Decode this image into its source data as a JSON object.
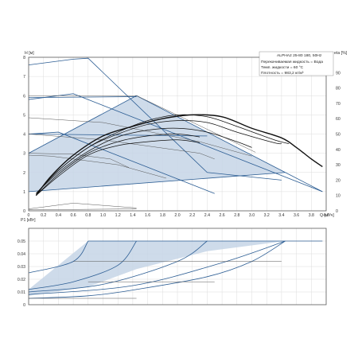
{
  "chart_data": [
    {
      "type": "line",
      "name": "head",
      "xlabel": "Q [м³/ч]",
      "ylabel": "H [м]",
      "y2label": "eta [%]",
      "xlim": [
        0,
        4.0
      ],
      "ylim": [
        0,
        8
      ],
      "y2lim": [
        0,
        100
      ],
      "x_ticks": [
        "0",
        "0.2",
        "0.4",
        "0.6",
        "0.8",
        "1.0",
        "1.2",
        "1.4",
        "1.6",
        "1.8",
        "2.0",
        "2.2",
        "2.4",
        "2.6",
        "2.8",
        "3.0",
        "3.2",
        "3.4",
        "3.6",
        "3.8",
        "4.0"
      ],
      "y_ticks": [
        "0",
        "1",
        "2",
        "3",
        "4",
        "5",
        "6",
        "7",
        "8"
      ],
      "y2_ticks": [
        "0",
        "10",
        "20",
        "30",
        "40",
        "50",
        "60",
        "70",
        "80",
        "90"
      ],
      "legend": [
        "ALPHA2 25-80 180, 50Hz",
        "Перекачиваемая жидкость = Вода",
        "Темп. жидкости = 60 °C",
        "Плотность = 983,2 кг/м³"
      ],
      "legend_placement": "top-right",
      "grid": true,
      "region": [
        [
          0,
          3.0
        ],
        [
          1.45,
          6.0
        ],
        [
          3.45,
          2.0
        ],
        [
          0,
          1.0
        ]
      ],
      "series": [
        {
          "style": "blue",
          "points": [
            [
              0,
              7.6
            ],
            [
              0.3,
              7.75
            ],
            [
              0.6,
              7.9
            ],
            [
              0.8,
              7.95
            ],
            [
              2.4,
              2.0
            ],
            [
              3.4,
              1.6
            ]
          ]
        },
        {
          "style": "blue",
          "points": [
            [
              0,
              5.8
            ],
            [
              0.6,
              6.1
            ],
            [
              3.95,
              1.0
            ]
          ]
        },
        {
          "style": "blue",
          "points": [
            [
              0,
              4.0
            ],
            [
              0.4,
              4.1
            ],
            [
              2.5,
              0.9
            ]
          ]
        },
        {
          "style": "blue",
          "points": [
            [
              0,
              3.0
            ],
            [
              1.45,
              6.0
            ],
            [
              3.45,
              2.0
            ],
            [
              3.95,
              1.0
            ]
          ]
        },
        {
          "style": "blue",
          "points": [
            [
              0,
              5.9
            ],
            [
              1.45,
              5.95
            ]
          ]
        },
        {
          "style": "blue",
          "points": [
            [
              0,
              4.0
            ],
            [
              2.4,
              3.9
            ]
          ]
        },
        {
          "style": "blue",
          "points": [
            [
              0,
              1.0
            ],
            [
              3.45,
              2.0
            ]
          ]
        },
        {
          "style": "grey",
          "points": [
            [
              0,
              6.0
            ],
            [
              1.45,
              6.0
            ],
            [
              3.05,
              3.05
            ]
          ]
        },
        {
          "style": "grey",
          "points": [
            [
              0,
              4.85
            ],
            [
              1.0,
              4.6
            ],
            [
              2.3,
              3.6
            ],
            [
              3.0,
              2.85
            ]
          ]
        },
        {
          "style": "grey",
          "points": [
            [
              0,
              4.0
            ],
            [
              1.0,
              3.7
            ],
            [
              2.3,
              3.0
            ],
            [
              2.5,
              2.7
            ]
          ]
        },
        {
          "style": "grey",
          "points": [
            [
              0,
              2.9
            ],
            [
              0.3,
              2.85
            ],
            [
              1.2,
              2.4
            ],
            [
              1.85,
              1.7
            ]
          ]
        },
        {
          "style": "grey",
          "points": [
            [
              0,
              3.0
            ],
            [
              0.6,
              2.95
            ],
            [
              1.1,
              2.7
            ],
            [
              1.35,
              2.25
            ]
          ]
        },
        {
          "style": "grey",
          "points": [
            [
              0,
              0.1
            ],
            [
              0.6,
              0.4
            ],
            [
              1.45,
              0.15
            ]
          ]
        },
        {
          "style": "grey",
          "points": [
            [
              0,
              0.05
            ],
            [
              1.45,
              0.1
            ]
          ]
        },
        {
          "style": "eff_main",
          "points": [
            [
              0.1,
              0.8
            ],
            [
              0.3,
              1.8
            ],
            [
              0.6,
              2.9
            ],
            [
              1.0,
              3.9
            ],
            [
              1.4,
              4.4
            ],
            [
              1.8,
              4.8
            ],
            [
              2.2,
              5.0
            ],
            [
              2.6,
              4.9
            ],
            [
              3.0,
              4.3
            ],
            [
              3.4,
              3.8
            ],
            [
              3.6,
              3.3
            ],
            [
              3.8,
              2.7
            ],
            [
              3.95,
              2.3
            ]
          ]
        },
        {
          "style": "eff",
          "points": [
            [
              0.1,
              0.9
            ],
            [
              0.4,
              2.1
            ],
            [
              0.8,
              3.3
            ],
            [
              1.2,
              4.1
            ],
            [
              1.6,
              4.7
            ],
            [
              2.0,
              5.0
            ],
            [
              2.4,
              4.9
            ],
            [
              2.8,
              4.4
            ],
            [
              3.3,
              3.7
            ],
            [
              3.5,
              3.5
            ]
          ]
        },
        {
          "style": "eff",
          "points": [
            [
              0.1,
              0.9
            ],
            [
              0.4,
              2.1
            ],
            [
              0.8,
              3.3
            ],
            [
              1.2,
              4.0
            ],
            [
              1.6,
              4.5
            ],
            [
              2.0,
              4.7
            ],
            [
              2.4,
              4.6
            ],
            [
              2.8,
              4.1
            ],
            [
              3.3,
              3.55
            ],
            [
              3.4,
              3.5
            ]
          ]
        },
        {
          "style": "eff",
          "points": [
            [
              0.1,
              0.9
            ],
            [
              0.4,
              2.0
            ],
            [
              0.8,
              3.1
            ],
            [
              1.2,
              3.85
            ],
            [
              1.6,
              4.2
            ],
            [
              2.0,
              4.3
            ],
            [
              2.4,
              4.1
            ],
            [
              2.8,
              3.6
            ],
            [
              3.0,
              3.3
            ]
          ]
        },
        {
          "style": "eff",
          "points": [
            [
              0.1,
              0.8
            ],
            [
              0.4,
              1.9
            ],
            [
              0.8,
              3.0
            ],
            [
              1.2,
              3.6
            ],
            [
              1.6,
              3.9
            ],
            [
              2.0,
              4.0
            ],
            [
              2.3,
              3.85
            ]
          ]
        },
        {
          "style": "eff",
          "points": [
            [
              0.1,
              0.8
            ],
            [
              0.4,
              1.8
            ],
            [
              0.8,
              2.9
            ],
            [
              1.2,
              3.4
            ],
            [
              1.6,
              3.6
            ],
            [
              2.0,
              3.7
            ],
            [
              2.3,
              3.55
            ]
          ]
        }
      ]
    },
    {
      "type": "line",
      "name": "power",
      "ylabel": "P1 [кВт]",
      "xlim": [
        0,
        4.0
      ],
      "ylim": [
        0,
        0.06
      ],
      "y_ticks": [
        "0",
        "0.01",
        "0.02",
        "0.03",
        "0.04",
        "0.05"
      ],
      "grid": true,
      "region": [
        [
          0,
          0.007
        ],
        [
          0.8,
          0.014
        ],
        [
          1.45,
          0.028
        ],
        [
          2.4,
          0.042
        ],
        [
          3.45,
          0.05
        ],
        [
          0.8,
          0.05
        ],
        [
          0,
          0.012
        ]
      ],
      "series": [
        {
          "style": "blue",
          "points": [
            [
              0.8,
              0.05
            ],
            [
              3.95,
              0.05
            ]
          ]
        },
        {
          "style": "blue",
          "points": [
            [
              0,
              0.025
            ],
            [
              0.6,
              0.034
            ],
            [
              0.8,
              0.05
            ]
          ]
        },
        {
          "style": "blue",
          "points": [
            [
              0,
              0.012
            ],
            [
              0.6,
              0.018
            ],
            [
              1.2,
              0.031
            ],
            [
              1.45,
              0.05
            ]
          ]
        },
        {
          "style": "blue",
          "points": [
            [
              0,
              0.01
            ],
            [
              1.0,
              0.016
            ],
            [
              2.0,
              0.034
            ],
            [
              2.4,
              0.05
            ]
          ]
        },
        {
          "style": "blue",
          "points": [
            [
              0,
              0.008
            ],
            [
              1.4,
              0.015
            ],
            [
              2.6,
              0.033
            ],
            [
              3.45,
              0.05
            ]
          ]
        },
        {
          "style": "blue",
          "points": [
            [
              0,
              0.005
            ],
            [
              0.8,
              0.007
            ],
            [
              1.45,
              0.012
            ],
            [
              2.4,
              0.022
            ],
            [
              3.0,
              0.034
            ],
            [
              3.45,
              0.05
            ]
          ]
        },
        {
          "style": "grey",
          "points": [
            [
              0.6,
              0.034
            ],
            [
              3.4,
              0.034
            ]
          ]
        },
        {
          "style": "grey",
          "points": [
            [
              0.8,
              0.018
            ],
            [
              2.5,
              0.018
            ]
          ]
        },
        {
          "style": "grey",
          "points": [
            [
              0,
              0.005
            ],
            [
              1.45,
              0.005
            ]
          ]
        }
      ]
    }
  ]
}
